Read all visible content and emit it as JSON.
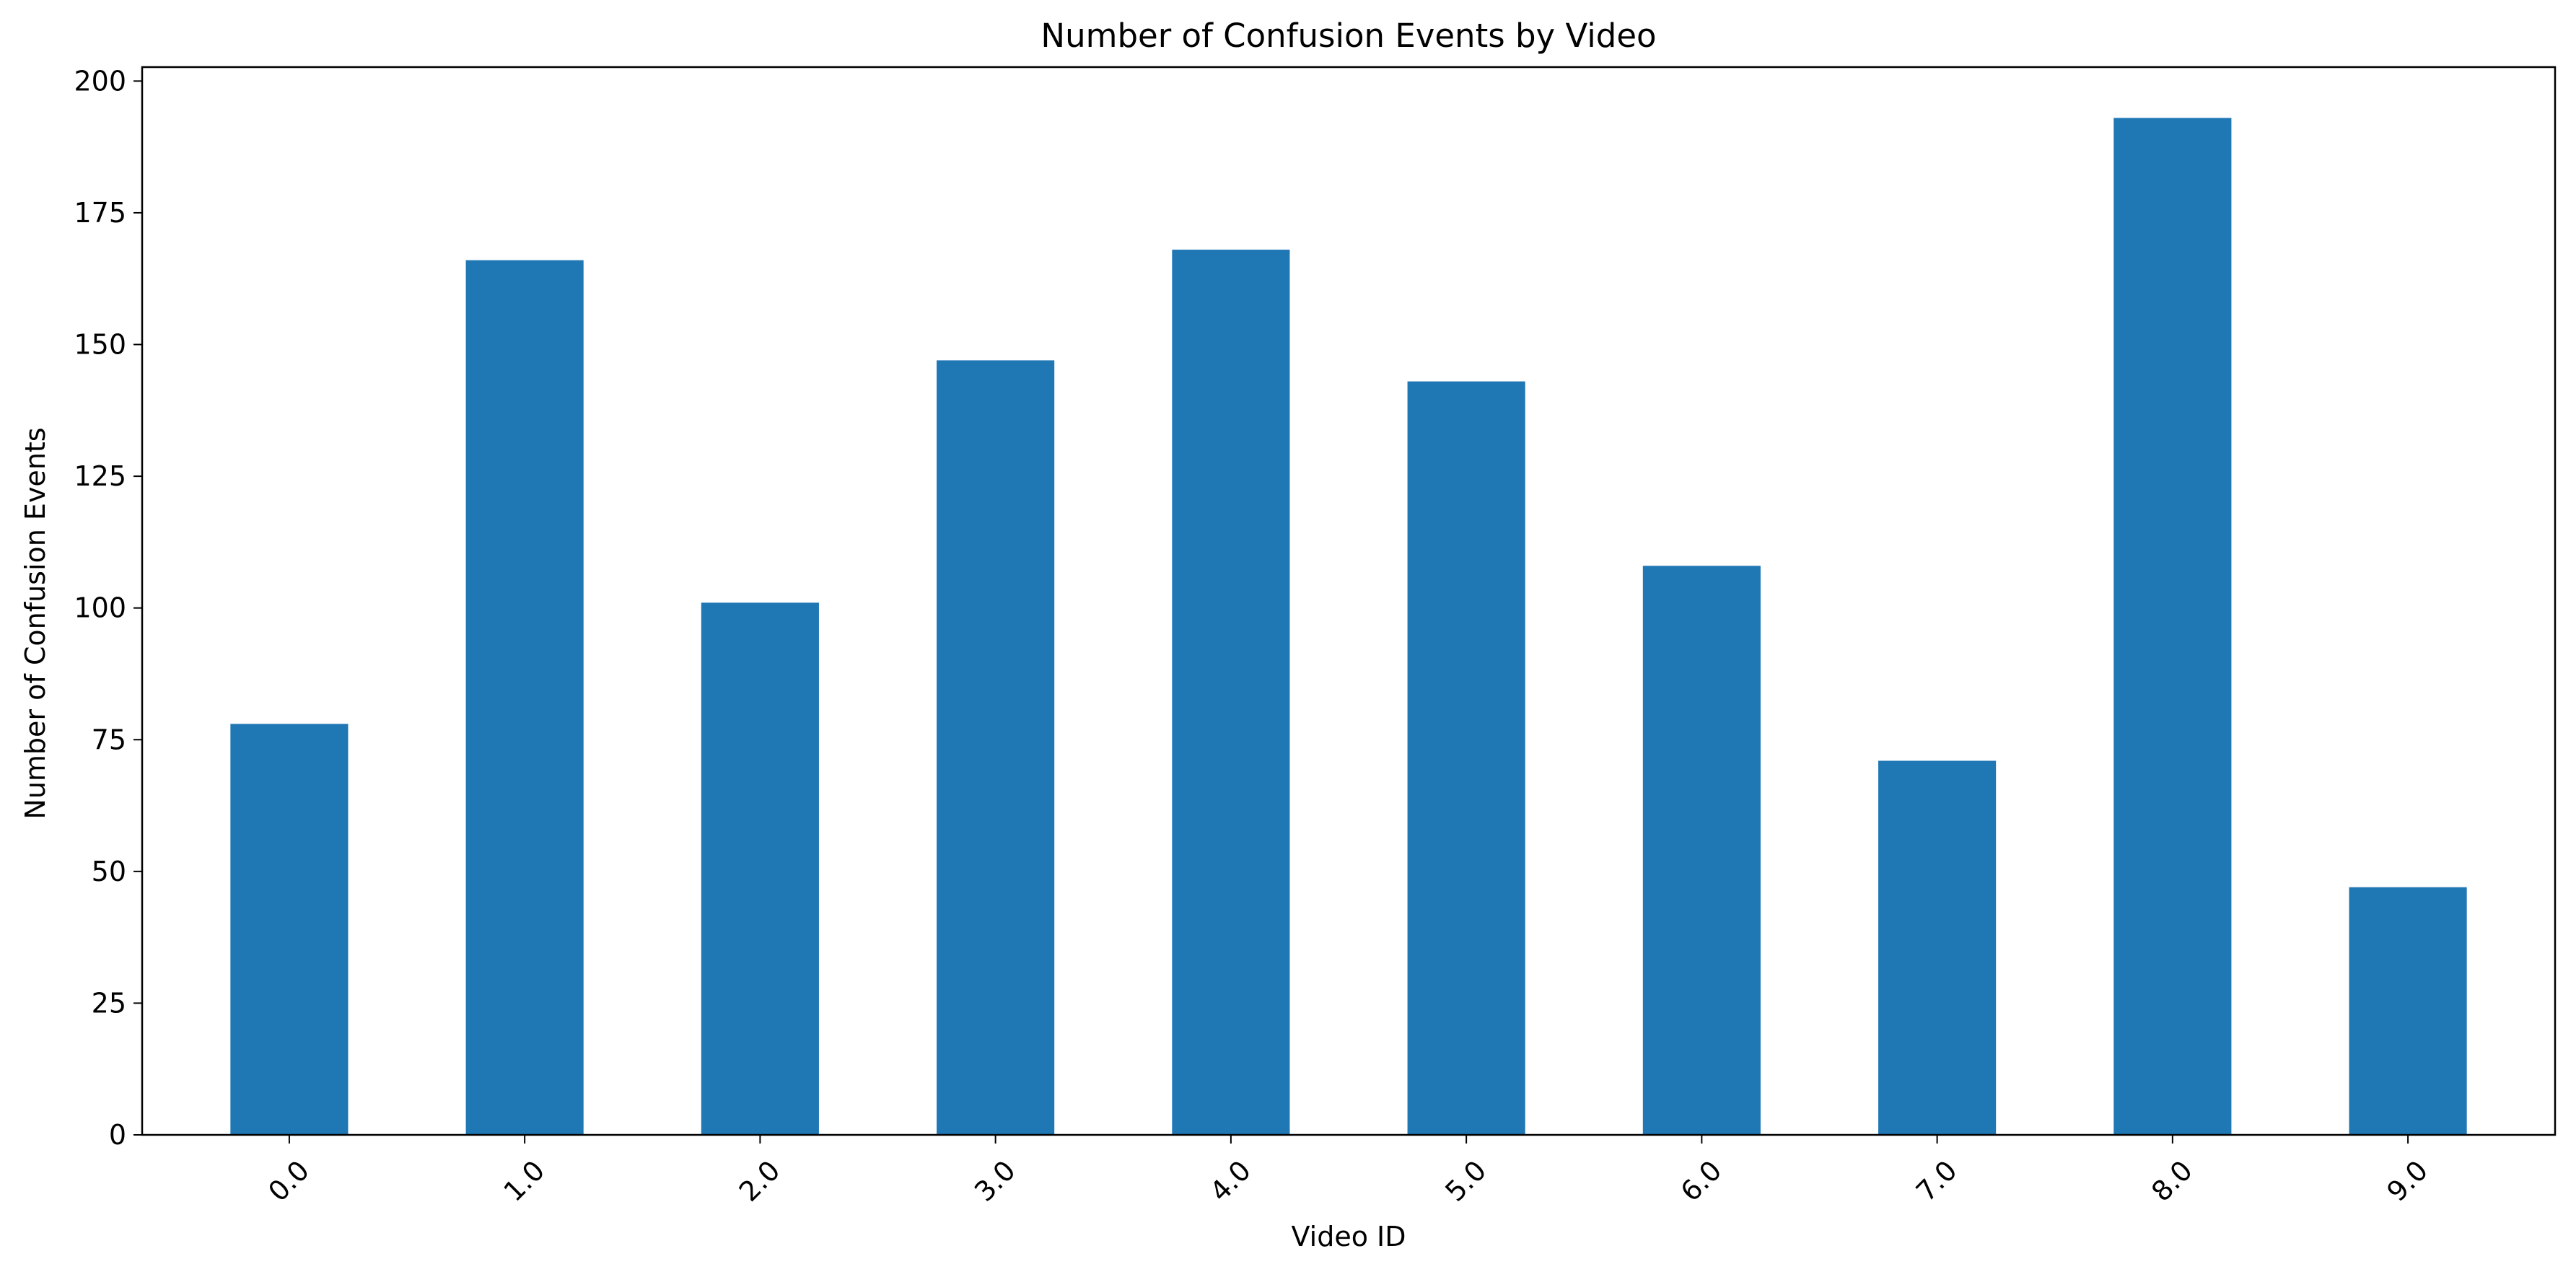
{
  "chart_data": {
    "type": "bar",
    "title": "Number of Confusion Events by Video",
    "xlabel": "Video ID",
    "ylabel": "Number of Confusion Events",
    "categories": [
      "0.0",
      "1.0",
      "2.0",
      "3.0",
      "4.0",
      "5.0",
      "6.0",
      "7.0",
      "8.0",
      "9.0"
    ],
    "values": [
      78,
      166,
      101,
      147,
      168,
      143,
      108,
      71,
      193,
      47
    ],
    "ylim": [
      0,
      202.65
    ],
    "yticks": [
      0,
      25,
      50,
      75,
      100,
      125,
      150,
      175,
      200
    ],
    "xtick_rotation_deg": 45,
    "grid": false,
    "legend": "none",
    "bar_color": "#1f77b4"
  }
}
